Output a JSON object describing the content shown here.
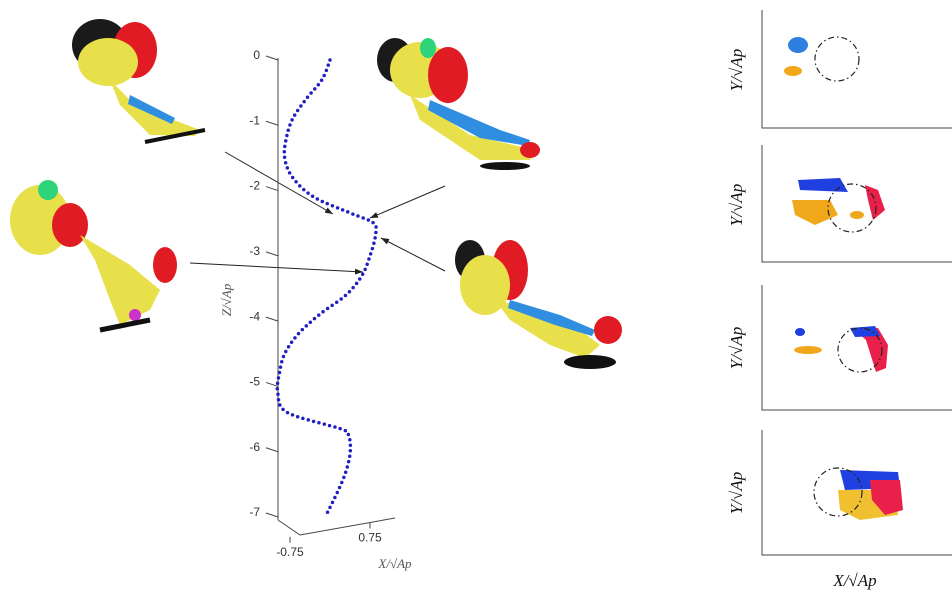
{
  "chart_data": {
    "type": "line",
    "x_label": "X/√Ap",
    "y_label": "Z/√Ap",
    "x": [
      0,
      -0.15,
      -0.45,
      -0.7,
      -0.82,
      -0.85,
      -0.7,
      -0.3,
      0.4,
      0.82,
      0.85,
      0.75,
      0.6,
      0.3,
      -0.2,
      -0.6,
      -0.85,
      -0.95,
      -0.98,
      -0.8,
      0.2,
      0.35,
      0.38,
      0.3,
      0.15,
      -0.09
    ],
    "values": [
      0,
      -0.3,
      -0.6,
      -0.9,
      -1.2,
      -1.5,
      -1.8,
      -2.1,
      -2.35,
      -2.5,
      -2.7,
      -3.0,
      -3.3,
      -3.6,
      -3.9,
      -4.2,
      -4.5,
      -4.8,
      -5.1,
      -5.4,
      -5.65,
      -5.75,
      -6.0,
      -6.3,
      -6.6,
      -7.0
    ],
    "color": "#1f1fc4",
    "xlim": [
      -1.5,
      1.5
    ],
    "ylim": [
      -7,
      0
    ],
    "xticks": [
      -0.75,
      0.75
    ],
    "yticks": [
      0,
      -1,
      -2,
      -3,
      -4,
      -5,
      -6,
      -7
    ]
  },
  "panels": {
    "y_labels": [
      "Y/√Ap",
      "Y/√Ap",
      "Y/√Ap",
      "Y/√Ap"
    ],
    "x_label": "X/√Ap"
  }
}
